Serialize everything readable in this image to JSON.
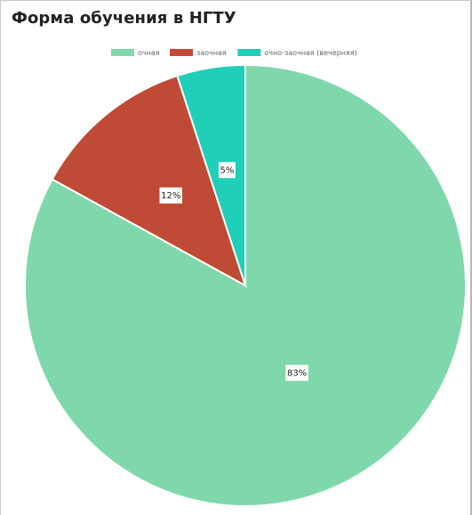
{
  "title": "Форма обучения в НГТУ",
  "chart_data": {
    "type": "pie",
    "title": "Форма обучения в НГТУ",
    "legend_position": "top",
    "categories": [
      "очная",
      "заочная",
      "очно-заочная (вечерняя)"
    ],
    "values": [
      83,
      12,
      5
    ],
    "labels": [
      "83%",
      "12%",
      "5%"
    ],
    "colors": [
      "#7fd8ab",
      "#bf4a35",
      "#1fcfb8"
    ],
    "start_angle": "top",
    "direction": "clockwise"
  }
}
